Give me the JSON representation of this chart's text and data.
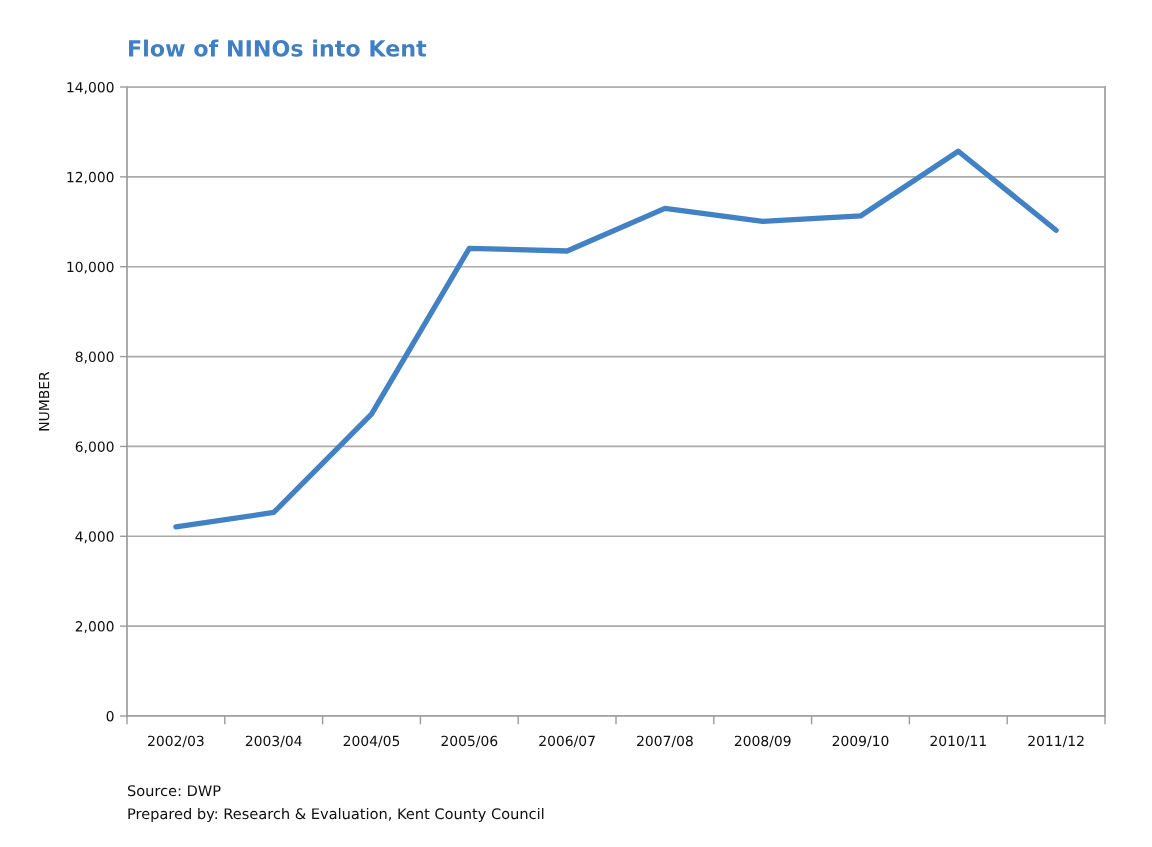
{
  "chart_data": {
    "type": "line",
    "title": "Flow of NINOs into Kent",
    "ylabel": "NUMBER",
    "categories": [
      "2002/03",
      "2003/04",
      "2004/05",
      "2005/06",
      "2006/07",
      "2007/08",
      "2008/09",
      "2009/10",
      "2010/11",
      "2011/12"
    ],
    "series": [
      {
        "color": "#4281c4",
        "values": [
          4210,
          4530,
          6720,
          10410,
          10350,
          11300,
          11010,
          11130,
          12570,
          10810
        ]
      }
    ],
    "ylim": [
      0,
      14000
    ],
    "yticks": [
      0,
      {
        "value": 2000,
        "label": "2,000"
      },
      {
        "value": 4000,
        "label": "4,000"
      },
      {
        "value": 6000,
        "label": "6,000"
      },
      {
        "value": 8000,
        "label": "8,000"
      },
      {
        "value": 10000,
        "label": "10,000"
      },
      {
        "value": 12000,
        "label": "12,000"
      },
      {
        "value": 14000,
        "label": "14,000"
      }
    ],
    "grid": "y",
    "marker": "none",
    "line_style": "solid",
    "annotations": [
      "Source: DWP",
      "Prepared by: Research & Evaluation, Kent County Council"
    ]
  }
}
